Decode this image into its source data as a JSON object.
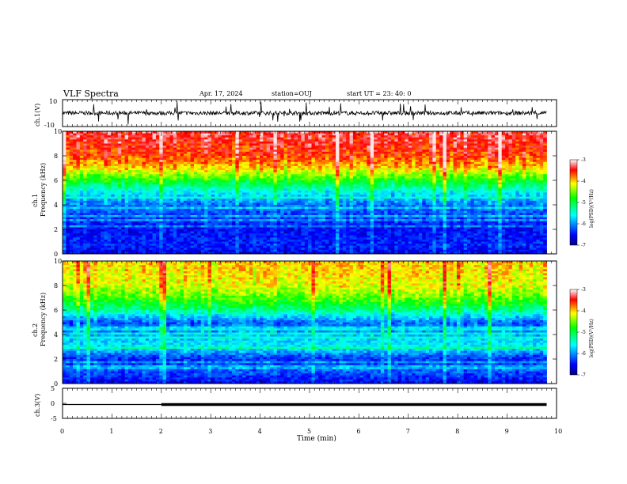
{
  "header": {
    "title": "VLF Spectra",
    "date": "Apr. 17, 2024",
    "station": "station=OUJ",
    "start": "start  UT  =   23: 40: 0"
  },
  "chart_data": [
    {
      "type": "line",
      "id": "ch1-waveform",
      "ylabel": "ch.1(V)",
      "ylim": [
        -10,
        10
      ],
      "yticks": [
        "10",
        "-10"
      ],
      "xlim": [
        0,
        10
      ],
      "note": "dense noise trace around ~0 V with spikes"
    },
    {
      "type": "heatmap",
      "id": "ch1-spectrogram",
      "ylabel_top": "ch.1",
      "ylabel": "Frequency  (kHz)",
      "ylim": [
        0,
        10
      ],
      "yticks": [
        "0",
        "2",
        "4",
        "6",
        "8",
        "10"
      ],
      "xlim": [
        0,
        9.8
      ],
      "colorbar": {
        "label": "log(PSD)(V²/Hz)",
        "range": [
          -7,
          -3
        ],
        "ticks": [
          "-3",
          "-4",
          "-5",
          "-6",
          "-7"
        ]
      },
      "profile_khz": [
        {
          "f": 0,
          "v": -6.6
        },
        {
          "f": 0.6,
          "v": -6.4
        },
        {
          "f": 2,
          "v": -6.5
        },
        {
          "f": 3,
          "v": -6.3
        },
        {
          "f": 4,
          "v": -6.1
        },
        {
          "f": 5,
          "v": -5.6
        },
        {
          "f": 6,
          "v": -4.8
        },
        {
          "f": 7,
          "v": -4.0
        },
        {
          "f": 8,
          "v": -3.6
        },
        {
          "f": 10,
          "v": -3.3
        }
      ]
    },
    {
      "type": "heatmap",
      "id": "ch2-spectrogram",
      "ylabel_top": "ch.2",
      "ylabel": "Frequency  (kHz)",
      "ylim": [
        0,
        10
      ],
      "yticks": [
        "0",
        "2",
        "4",
        "6",
        "8",
        "10"
      ],
      "xlim": [
        0,
        9.8
      ],
      "colorbar": {
        "label": "log(PSD)(V²/Hz)",
        "range": [
          -7,
          -3
        ],
        "ticks": [
          "-3",
          "-4",
          "-5",
          "-6",
          "-7"
        ]
      },
      "profile_khz": [
        {
          "f": 0,
          "v": -6.6
        },
        {
          "f": 1,
          "v": -6.2
        },
        {
          "f": 2,
          "v": -6.4
        },
        {
          "f": 3,
          "v": -5.6
        },
        {
          "f": 4,
          "v": -5.9
        },
        {
          "f": 5,
          "v": -6.2
        },
        {
          "f": 6,
          "v": -5.2
        },
        {
          "f": 7,
          "v": -4.6
        },
        {
          "f": 8,
          "v": -4.2
        },
        {
          "f": 10,
          "v": -4.0
        }
      ]
    },
    {
      "type": "line",
      "id": "ch3-level",
      "ylabel": "ch.3(V)",
      "ylim": [
        -5,
        5
      ],
      "yticks": [
        "5",
        "0",
        "-5"
      ],
      "xlim": [
        0,
        10
      ],
      "x": [
        0,
        2,
        2,
        9.8
      ],
      "y": [
        -0.4,
        -0.4,
        -0.4,
        -0.4
      ],
      "thick_from": 2
    }
  ],
  "x_axis": {
    "label": "Time  (min)",
    "ticks": [
      "0",
      "1",
      "2",
      "3",
      "4",
      "5",
      "6",
      "7",
      "8",
      "9",
      "10"
    ]
  }
}
